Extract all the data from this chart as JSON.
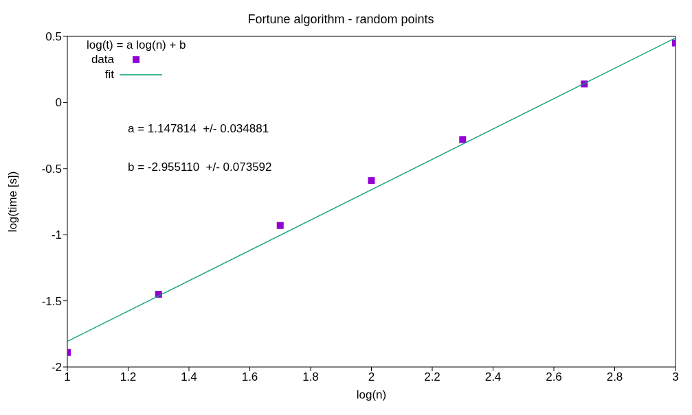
{
  "chart_data": {
    "type": "scatter",
    "title": "Fortune algorithm - random points",
    "xlabel": "log(n)",
    "ylabel": "log(time [s])",
    "legend_title": "log(t) = a log(n) + b",
    "xlim": [
      1,
      3
    ],
    "xticks": [
      1,
      1.2,
      1.4,
      1.6,
      1.8,
      2,
      2.2,
      2.4,
      2.6,
      2.8,
      3
    ],
    "ylim": [
      -2,
      0.5
    ],
    "yticks": [
      -2,
      -1.5,
      -1,
      -0.5,
      0,
      0.5
    ],
    "series": [
      {
        "name": "data",
        "type": "scatter",
        "marker": "square",
        "color": "#9400d3",
        "x": [
          1,
          1.3,
          1.7,
          2,
          2.3,
          2.7,
          3
        ],
        "values": [
          -1.89,
          -1.45,
          -0.93,
          -0.59,
          -0.28,
          0.14,
          0.45
        ]
      },
      {
        "name": "fit",
        "type": "line",
        "marker": "none",
        "color": "#009e73",
        "x": [
          1,
          3
        ],
        "values": [
          -1.807,
          0.488
        ]
      }
    ],
    "annotations": [
      "a = 1.147814  +/- 0.034881",
      "b = -2.955110  +/- 0.073592"
    ],
    "legend": "top left",
    "grid": false
  }
}
